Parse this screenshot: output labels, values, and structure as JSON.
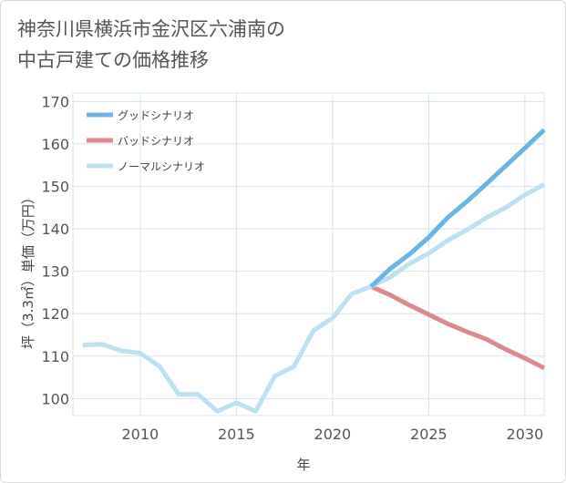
{
  "header": {
    "title_line1": "神奈川県横浜市金沢区六浦南の",
    "title_line2": "中古戸建ての価格推移"
  },
  "chart_data": {
    "type": "line",
    "xlabel": "年",
    "ylabel": "坪（3.3㎡）単価（万円）",
    "xlim": [
      2006.5,
      2031
    ],
    "ylim": [
      96,
      172
    ],
    "xticks": [
      2010,
      2015,
      2020,
      2025,
      2030
    ],
    "yticks": [
      100,
      110,
      120,
      130,
      140,
      150,
      160,
      170
    ],
    "grid": true,
    "legend_position": "top-left",
    "series": [
      {
        "name": "グッドシナリオ",
        "color": "#6cb4e4",
        "x": [
          2022,
          2023,
          2024,
          2025,
          2026,
          2027,
          2028,
          2029,
          2030,
          2031
        ],
        "values": [
          126.4,
          130.6,
          134.0,
          138.0,
          142.7,
          146.5,
          150.6,
          154.8,
          159.0,
          163.3
        ]
      },
      {
        "name": "バッドシナリオ",
        "color": "#dc8a8f",
        "x": [
          2022,
          2023,
          2024,
          2025,
          2026,
          2027,
          2028,
          2029,
          2030,
          2031
        ],
        "values": [
          126.4,
          124.4,
          122.0,
          119.8,
          117.6,
          115.7,
          114.0,
          111.6,
          109.5,
          107.2
        ]
      },
      {
        "name": "ノーマルシナリオ",
        "color": "#bfe0ef",
        "x": [
          2007,
          2008,
          2009,
          2010,
          2011,
          2012,
          2013,
          2014,
          2015,
          2016,
          2017,
          2018,
          2019,
          2020,
          2021,
          2022,
          2023,
          2024,
          2025,
          2026,
          2027,
          2028,
          2029,
          2030,
          2031
        ],
        "values": [
          112.6,
          112.8,
          111.3,
          110.7,
          107.6,
          101.0,
          101.0,
          97.0,
          99.0,
          97.0,
          105.3,
          107.6,
          116.0,
          119.0,
          124.7,
          126.4,
          128.6,
          131.8,
          134.2,
          137.3,
          139.8,
          142.6,
          145.0,
          148.0,
          150.4
        ]
      }
    ]
  }
}
